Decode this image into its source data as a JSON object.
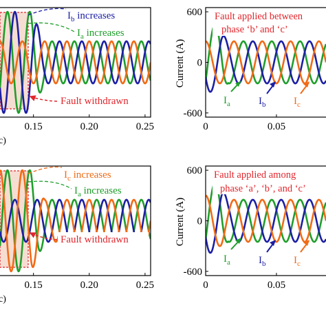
{
  "colors": {
    "phase_a": "#1f9e2b",
    "phase_b": "#1c1fa3",
    "phase_c": "#f06b16",
    "annotation_red": "#e0262c",
    "axis": "#000000",
    "shade": "#f6ddd2"
  },
  "chart_data": [
    {
      "id": "top-left",
      "type": "line",
      "x_ticks": [
        0.15,
        0.2,
        0.25
      ],
      "x_tick_labels": [
        "0.15",
        "0.20",
        "0.25"
      ],
      "xlim": [
        0.12,
        0.255
      ],
      "ylim": [
        -650,
        650
      ],
      "freq_hz": 50,
      "phases": {
        "a": -30,
        "b": -150,
        "c": 90
      },
      "normal_amplitude": 250,
      "fault_window": [
        0.12,
        0.16
      ],
      "fault_amplitude": {
        "a": 600,
        "b": 600,
        "c": 250
      },
      "series": [
        {
          "name": "Ia",
          "phase": "a"
        },
        {
          "name": "Ib",
          "phase": "b"
        },
        {
          "name": "Ic",
          "phase": "c"
        }
      ],
      "annotations": {
        "line1_main": "I",
        "line1_sub": "b",
        "line1_text": " increases",
        "line2_main": "I",
        "line2_sub": "a",
        "line2_text": " increases",
        "withdrawn": "Fault withdrawn",
        "corner": "c)"
      }
    },
    {
      "id": "top-right",
      "type": "line",
      "ylabel": "Current (A)",
      "x_ticks": [
        0,
        0.05
      ],
      "x_tick_labels": [
        "0",
        "0.05"
      ],
      "y_ticks": [
        -600,
        0,
        600
      ],
      "y_tick_labels": [
        "-600",
        "0",
        "600"
      ],
      "xlim": [
        0,
        0.085
      ],
      "ylim": [
        -650,
        650
      ],
      "freq_hz": 50,
      "phases": {
        "a": -30,
        "b": -150,
        "c": 90
      },
      "normal_amplitude": 250,
      "fault_window": [
        0,
        0.016
      ],
      "fault_amplitude": {
        "a": 450,
        "b": 350,
        "c": 250
      },
      "series": [
        {
          "name": "Ia",
          "phase": "a"
        },
        {
          "name": "Ib",
          "phase": "b"
        },
        {
          "name": "Ic",
          "phase": "c"
        }
      ],
      "annotations": {
        "title_line1": "Fault applied between",
        "title_line2": "phase ‘b’ and ‘c’",
        "label_a_main": "I",
        "label_a_sub": "a",
        "label_b_main": "I",
        "label_b_sub": "b",
        "label_c_main": "I",
        "label_c_sub": "c"
      }
    },
    {
      "id": "bottom-left",
      "type": "line",
      "x_ticks": [
        0.15,
        0.2,
        0.25
      ],
      "x_tick_labels": [
        "0.15",
        "0.20",
        "0.25"
      ],
      "xlim": [
        0.12,
        0.255
      ],
      "ylim": [
        -650,
        650
      ],
      "freq_hz": 50,
      "phases": {
        "a": -30,
        "b": -150,
        "c": 90
      },
      "normal_amplitude": 250,
      "fault_window": [
        0.12,
        0.16
      ],
      "fault_amplitude": {
        "a": 600,
        "b": 250,
        "c": 600
      },
      "series": [
        {
          "name": "Ia",
          "phase": "a"
        },
        {
          "name": "Ib",
          "phase": "b"
        },
        {
          "name": "Ic",
          "phase": "c"
        }
      ],
      "annotations": {
        "line1_main": "I",
        "line1_sub": "c",
        "line1_text": " increases",
        "line2_main": "I",
        "line2_sub": "a",
        "line2_text": " increases",
        "withdrawn": "Fault withdrawn",
        "corner": "c)"
      }
    },
    {
      "id": "bottom-right",
      "type": "line",
      "ylabel": "Current (A)",
      "x_ticks": [
        0,
        0.05
      ],
      "x_tick_labels": [
        "0",
        "0.05"
      ],
      "y_ticks": [
        -600,
        0,
        600
      ],
      "y_tick_labels": [
        "-600",
        "0",
        "600"
      ],
      "xlim": [
        0,
        0.085
      ],
      "ylim": [
        -650,
        650
      ],
      "freq_hz": 50,
      "phases": {
        "a": -30,
        "b": -150,
        "c": 90
      },
      "normal_amplitude": 250,
      "fault_window": [
        0,
        0.016
      ],
      "fault_amplitude": {
        "a": 450,
        "b": 380,
        "c": 300
      },
      "series": [
        {
          "name": "Ia",
          "phase": "a"
        },
        {
          "name": "Ib",
          "phase": "b"
        },
        {
          "name": "Ic",
          "phase": "c"
        }
      ],
      "annotations": {
        "title_line1": "Fault applied among",
        "title_line2": "phase ‘a’, ‘b’, and ‘c’",
        "label_a_main": "I",
        "label_a_sub": "a",
        "label_b_main": "I",
        "label_b_sub": "b",
        "label_c_main": "I",
        "label_c_sub": "c"
      }
    }
  ]
}
